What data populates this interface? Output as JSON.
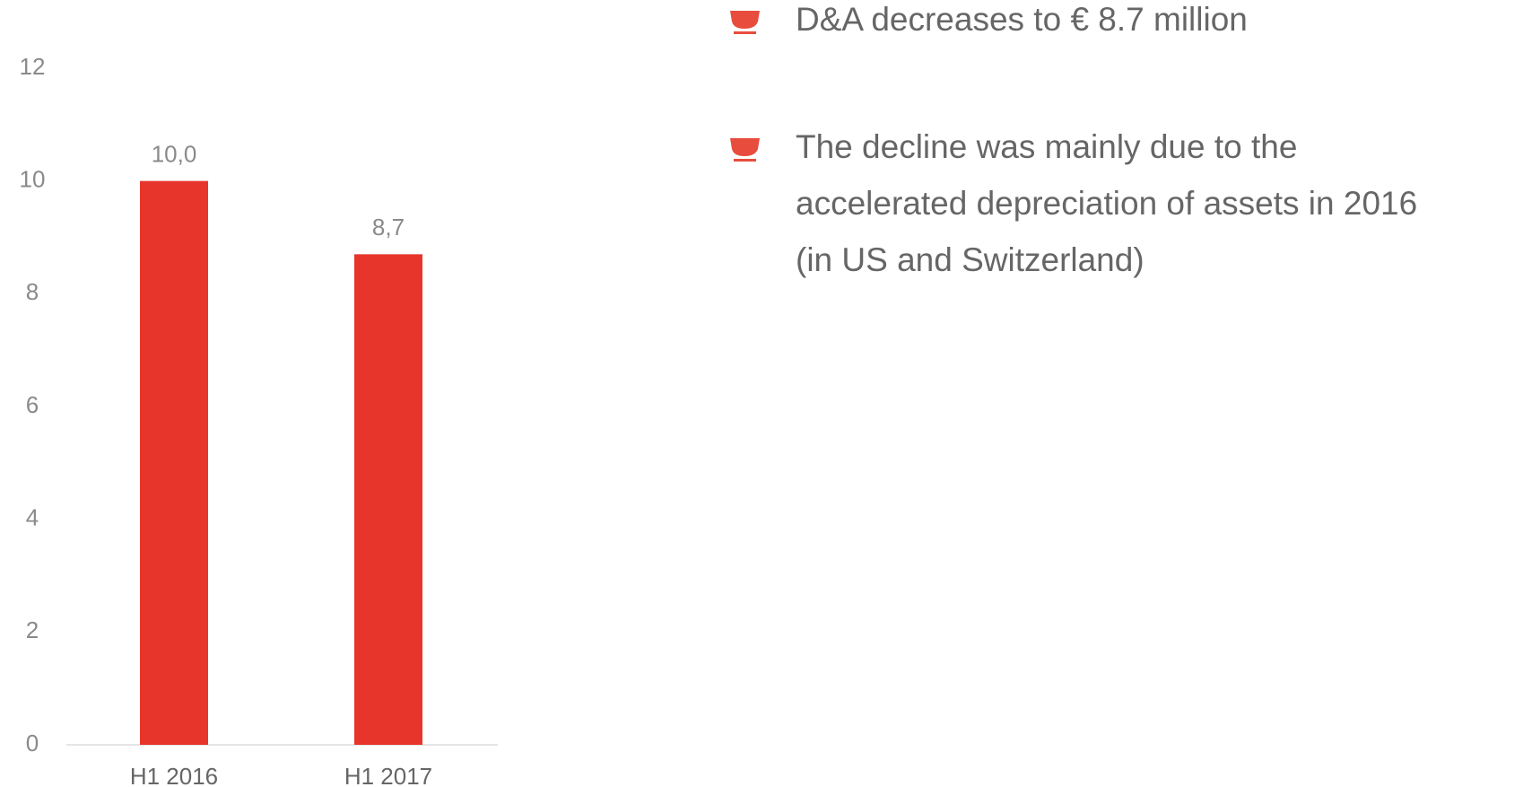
{
  "chart_data": {
    "type": "bar",
    "categories": [
      "H1 2016",
      "H1 2017"
    ],
    "values": [
      10.0,
      8.7
    ],
    "value_labels": [
      "10,0",
      "8,7"
    ],
    "color": "#e8352b",
    "ylim": [
      0,
      12
    ],
    "yticks": [
      0,
      2,
      4,
      6,
      8,
      10,
      12
    ],
    "grid": false
  },
  "bullets": [
    {
      "lines": [
        "D&A decreases to € 8.7 million"
      ]
    },
    {
      "lines": [
        "The decline was mainly due to the",
        "accelerated depreciation of assets in 2016",
        "(in US and Switzerland)"
      ]
    }
  ]
}
